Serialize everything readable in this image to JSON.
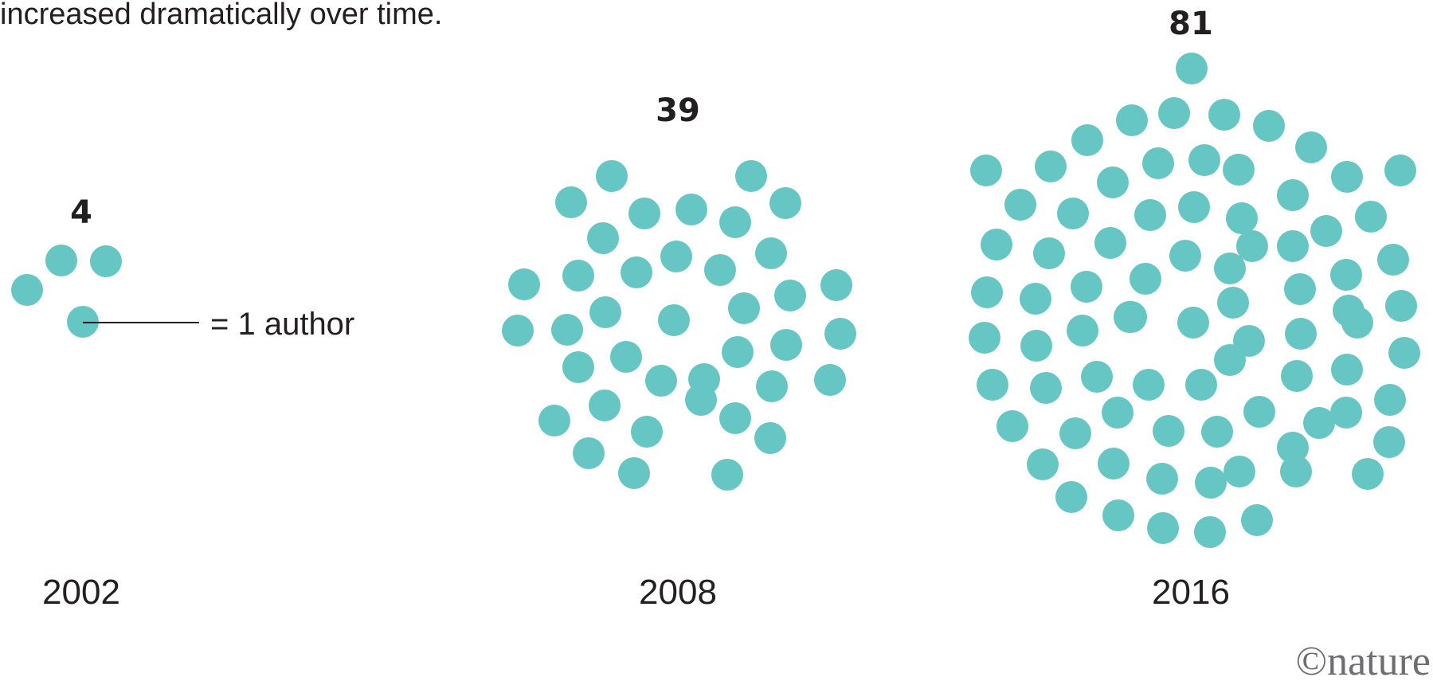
{
  "intro": {
    "text": "increased dramatically over time."
  },
  "legend": {
    "text": "= 1 author"
  },
  "brand": {
    "text": "©nature"
  },
  "colors": {
    "dot": "#66c6c3",
    "text": "#231f20",
    "brand": "#6d6e71"
  },
  "chart_data": {
    "type": "pictogram",
    "unit": "1 author",
    "categories": [
      "2002",
      "2008",
      "2016"
    ],
    "values": [
      4,
      39,
      81
    ],
    "series": [
      {
        "year": "2002",
        "count_label": "4",
        "authors": 4
      },
      {
        "year": "2008",
        "count_label": "39",
        "authors": 39
      },
      {
        "year": "2016",
        "count_label": "81",
        "authors": 81
      }
    ]
  }
}
